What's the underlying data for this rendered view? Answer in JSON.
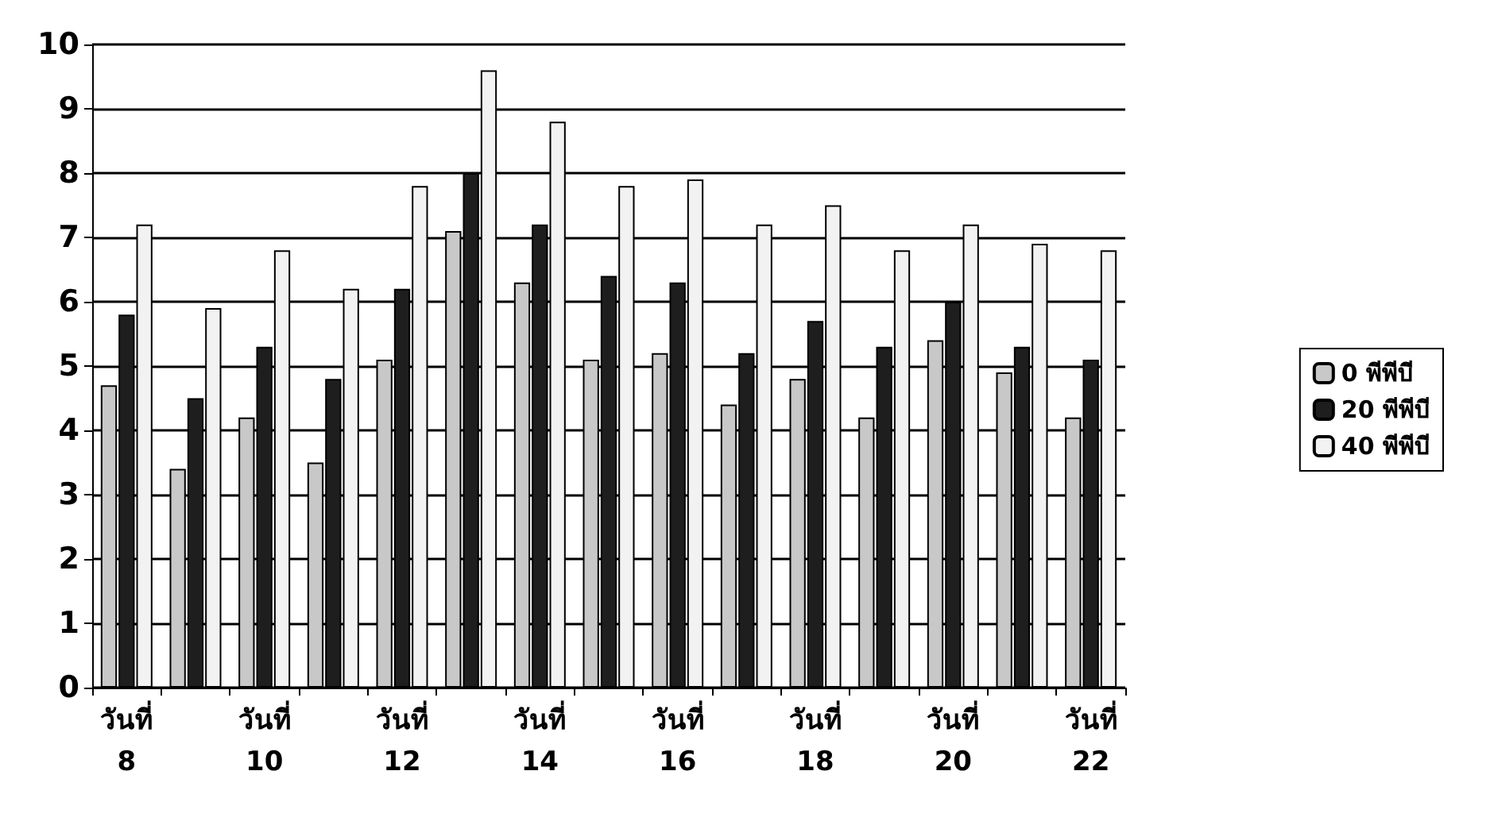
{
  "chart_data": {
    "type": "bar",
    "categories": [
      "วันที่\n8",
      null,
      "วันที่\n10",
      null,
      "วันที่\n12",
      null,
      "วันที่\n14",
      null,
      "วันที่\n16",
      null,
      "วันที่\n18",
      null,
      "วันที่\n20",
      null,
      "วันที่\n22"
    ],
    "series": [
      {
        "name": "0 พีพีบี",
        "color": "#c8c8c8",
        "values": [
          4.7,
          3.4,
          4.2,
          3.5,
          5.1,
          7.1,
          6.3,
          5.1,
          5.2,
          4.4,
          4.8,
          4.2,
          5.4,
          4.9,
          4.2
        ]
      },
      {
        "name": "20 พีพีบี",
        "color": "#1e1e1e",
        "values": [
          5.8,
          4.5,
          5.3,
          4.8,
          6.2,
          8.0,
          7.2,
          6.4,
          6.3,
          5.2,
          5.7,
          5.3,
          6.0,
          5.3,
          5.1
        ]
      },
      {
        "name": "40 พีพีบี",
        "color": "#f2f2f2",
        "values": [
          7.2,
          5.9,
          6.8,
          6.2,
          7.8,
          9.6,
          8.8,
          7.8,
          7.9,
          7.2,
          7.5,
          6.8,
          7.2,
          6.9,
          6.8
        ]
      }
    ],
    "ylim": [
      0,
      10
    ],
    "yticks": [
      0,
      1,
      2,
      3,
      4,
      5,
      6,
      7,
      8,
      9,
      10
    ],
    "grid": "y",
    "legend": "right"
  }
}
